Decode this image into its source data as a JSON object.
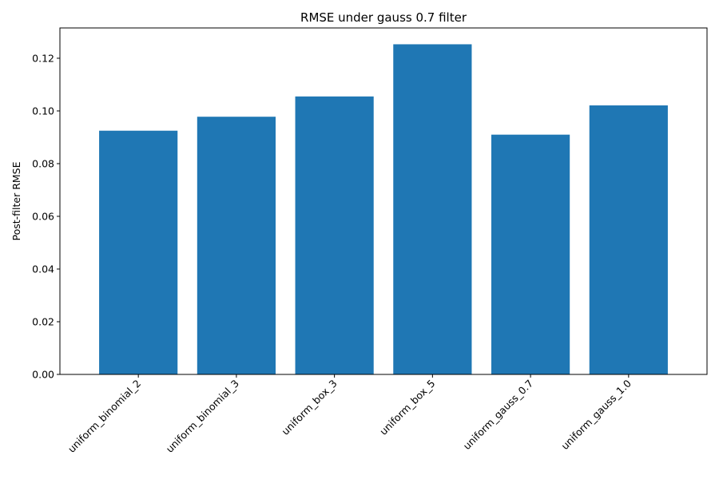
{
  "chart_data": {
    "type": "bar",
    "title": "RMSE under gauss 0.7 filter",
    "xlabel": "",
    "ylabel": "Post-filter RMSE",
    "categories": [
      "uniform_binomial_2",
      "uniform_binomial_3",
      "uniform_box_3",
      "uniform_box_5",
      "uniform_gauss_0.7",
      "uniform_gauss_1.0"
    ],
    "values": [
      0.0925,
      0.0978,
      0.1055,
      0.1253,
      0.091,
      0.1021
    ],
    "ylim": [
      0,
      0.1315
    ],
    "yticks": [
      "0.00",
      "0.02",
      "0.04",
      "0.06",
      "0.08",
      "0.10",
      "0.12"
    ],
    "ytick_values": [
      0,
      0.02,
      0.04,
      0.06,
      0.08,
      0.1,
      0.12
    ],
    "bar_color": "#1f77b4",
    "grid": false,
    "legend": "none"
  }
}
